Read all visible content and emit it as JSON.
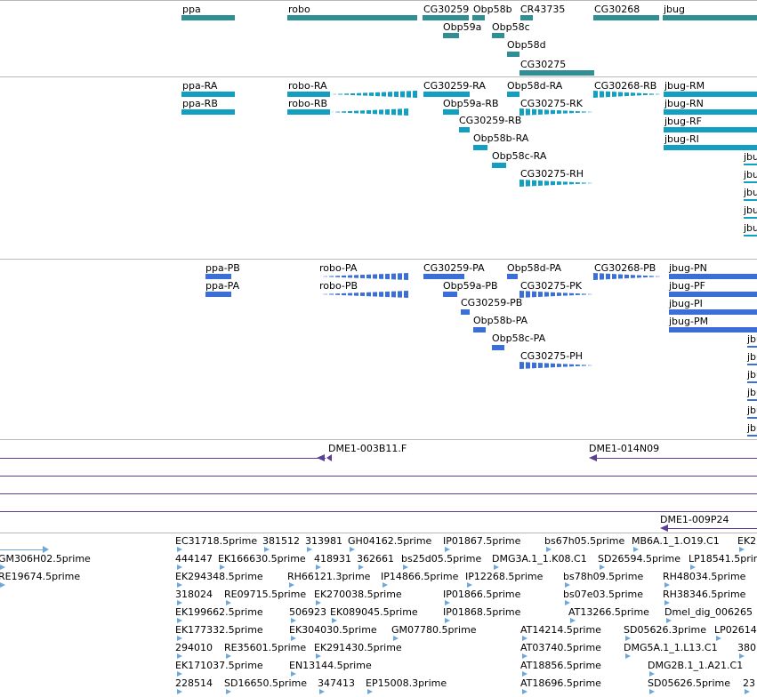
{
  "tracks": {
    "genes": {
      "labels": [
        "ppa",
        "robo",
        "CG30259",
        "Obp58b",
        "CR43735",
        "CG30268",
        "jbug",
        "Obp59a",
        "Obp58c",
        "Obp58d",
        "CG30275"
      ]
    },
    "transcripts": {
      "labels": [
        "ppa-RA",
        "ppa-RB",
        "robo-RA",
        "robo-RB",
        "CG30259-RA",
        "Obp58d-RA",
        "CG30268-RB",
        "jbug-RM",
        "Obp59a-RB",
        "CG30275-RK",
        "jbug-RN",
        "CG30259-RB",
        "jbug-RF",
        "Obp58b-RA",
        "jbug-RI",
        "Obp58c-RA",
        "CG30275-RH",
        "jbu",
        "jbu",
        "jbu",
        "jbu",
        "jbu"
      ]
    },
    "proteins": {
      "labels": [
        "ppa-PB",
        "ppa-PA",
        "robo-PA",
        "robo-PB",
        "CG30259-PA",
        "Obp58d-PA",
        "CG30268-PB",
        "jbug-PN",
        "Obp59a-PB",
        "CG30275-PK",
        "jbug-PF",
        "CG30259-PB",
        "jbug-PI",
        "Obp58b-PA",
        "jbug-PM",
        "Obp58c-PA",
        "CG30275-PH",
        "jbu",
        "jbu",
        "jbu",
        "jbu",
        "jbu",
        "jbu"
      ]
    },
    "clones": {
      "labels": [
        "DME1-003B11.F",
        "DME1-014N09",
        "DME1-009P24"
      ]
    },
    "ests": {
      "labels": [
        "EC31718.5prime",
        "381512",
        "313981",
        "GH04162.5prime",
        "IP01867.5prime",
        "bs67h05.5prime",
        "MB6A.1_1.O19.C1",
        "EK2",
        "GM306H02.5prime",
        "444147",
        "EK166630.5prime",
        "418931",
        "362661",
        "bs25d05.5prime",
        "DMG3A.1_1.K08.C1",
        "SD26594.5prime",
        "LP18541.5prime",
        "RE19674.5prime",
        "EK294348.5prime",
        "RH66121.3prime",
        "IP14866.5prime",
        "IP12268.5prime",
        "bs78h09.5prime",
        "RH48034.5prime",
        "318024",
        "RE09715.5prime",
        "EK270038.5prime",
        "IP01866.5prime",
        "bs07e03.5prime",
        "RH38346.5prime",
        "EK199662.5prime",
        "506923",
        "EK089045.5prime",
        "IP01868.5prime",
        "AT13266.5prime",
        "Dmel_dig_006265",
        "EK177332.5prime",
        "EK304030.5prime",
        "GM07780.5prime",
        "AT14214.5prime",
        "SD05626.3prime",
        "LP02614",
        "294010",
        "RE35601.5prime",
        "EK291430.5prime",
        "AT03740.5prime",
        "DMG5A.1_1.L13.C1",
        "380",
        "EK171037.5prime",
        "EN13144.5prime",
        "AT18856.5prime",
        "DMG2B.1_1.A21.C1",
        "228514",
        "SD16650.5prime",
        "347413",
        "EP15008.3prime",
        "AT18696.5prime",
        "SD05626.5prime",
        "23"
      ]
    }
  },
  "colors": {
    "gene": "#2f8f94",
    "transcript": "#139fc2",
    "protein": "#3b6ed6",
    "clone": "#5b3f96",
    "est": "#6fa8d8",
    "divider": "#b8b8b8"
  }
}
